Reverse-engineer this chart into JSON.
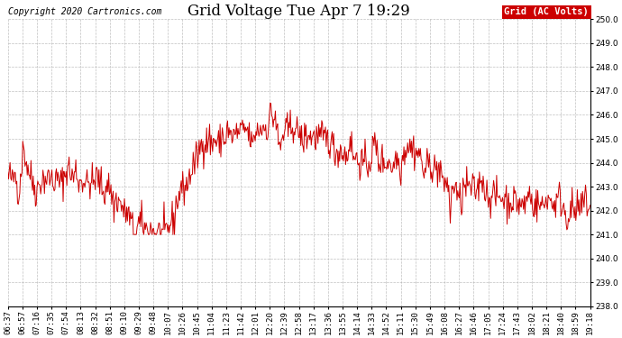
{
  "title": "Grid Voltage Tue Apr 7 19:29",
  "copyright": "Copyright 2020 Cartronics.com",
  "legend_label": "Grid (AC Volts)",
  "line_color": "#cc0000",
  "legend_bg": "#cc0000",
  "legend_text_color": "#ffffff",
  "background_color": "#ffffff",
  "grid_color": "#b0b0b0",
  "ylim": [
    238.0,
    250.0
  ],
  "yticks": [
    238.0,
    239.0,
    240.0,
    241.0,
    242.0,
    243.0,
    244.0,
    245.0,
    246.0,
    247.0,
    248.0,
    249.0,
    250.0
  ],
  "xtick_labels": [
    "06:37",
    "06:57",
    "07:16",
    "07:35",
    "07:54",
    "08:13",
    "08:32",
    "08:51",
    "09:10",
    "09:29",
    "09:48",
    "10:07",
    "10:26",
    "10:45",
    "11:04",
    "11:23",
    "11:42",
    "12:01",
    "12:20",
    "12:39",
    "12:58",
    "13:17",
    "13:36",
    "13:55",
    "14:14",
    "14:33",
    "14:52",
    "15:11",
    "15:30",
    "15:49",
    "16:08",
    "16:27",
    "16:46",
    "17:05",
    "17:24",
    "17:43",
    "18:02",
    "18:21",
    "18:40",
    "18:59",
    "19:18"
  ],
  "title_fontsize": 12,
  "copyright_fontsize": 7,
  "tick_fontsize": 6.5,
  "legend_fontsize": 7.5
}
